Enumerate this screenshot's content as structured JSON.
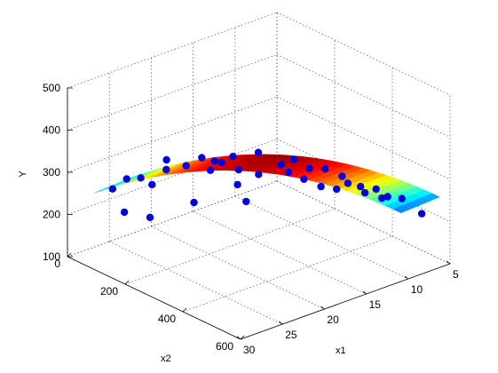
{
  "chart_data": {
    "type": "scatter",
    "subtype": "3d-scatter-with-fitted-surface",
    "title": "",
    "xlabel": "x1",
    "ylabel": "x2",
    "zlabel": "Y",
    "xlim": [
      5,
      30
    ],
    "ylim": [
      0,
      600
    ],
    "zlim": [
      100,
      500
    ],
    "x_ticks": [
      "5",
      "10",
      "15",
      "20",
      "25",
      "30"
    ],
    "y_ticks": [
      "0",
      "200",
      "400",
      "600"
    ],
    "z_ticks": [
      "100",
      "200",
      "300",
      "400",
      "500"
    ],
    "grid": true,
    "surface_colormap": "jet",
    "point_color": "#0000dd",
    "points": [
      {
        "x1": 26,
        "x2": 40,
        "y": 245
      },
      {
        "x1": 25,
        "x2": 60,
        "y": 268
      },
      {
        "x1": 24,
        "x2": 80,
        "y": 270
      },
      {
        "x1": 23,
        "x2": 90,
        "y": 250
      },
      {
        "x1": 22,
        "x2": 110,
        "y": 285
      },
      {
        "x1": 27,
        "x2": 110,
        "y": 220
      },
      {
        "x1": 23,
        "x2": 140,
        "y": 325
      },
      {
        "x1": 21,
        "x2": 150,
        "y": 300
      },
      {
        "x1": 26,
        "x2": 170,
        "y": 220
      },
      {
        "x1": 20,
        "x2": 175,
        "y": 320
      },
      {
        "x1": 19,
        "x2": 190,
        "y": 310
      },
      {
        "x1": 20,
        "x2": 205,
        "y": 300
      },
      {
        "x1": 19,
        "x2": 215,
        "y": 315
      },
      {
        "x1": 18,
        "x2": 225,
        "y": 325
      },
      {
        "x1": 23,
        "x2": 235,
        "y": 255
      },
      {
        "x1": 18,
        "x2": 245,
        "y": 300
      },
      {
        "x1": 16,
        "x2": 255,
        "y": 330
      },
      {
        "x1": 19,
        "x2": 270,
        "y": 280
      },
      {
        "x1": 17,
        "x2": 285,
        "y": 295
      },
      {
        "x1": 19,
        "x2": 300,
        "y": 250
      },
      {
        "x1": 15,
        "x2": 305,
        "y": 310
      },
      {
        "x1": 14,
        "x2": 320,
        "y": 320
      },
      {
        "x1": 15,
        "x2": 330,
        "y": 300
      },
      {
        "x1": 13,
        "x2": 345,
        "y": 300
      },
      {
        "x1": 14,
        "x2": 355,
        "y": 285
      },
      {
        "x1": 12,
        "x2": 370,
        "y": 300
      },
      {
        "x1": 13,
        "x2": 385,
        "y": 270
      },
      {
        "x1": 11,
        "x2": 400,
        "y": 285
      },
      {
        "x1": 12,
        "x2": 410,
        "y": 265
      },
      {
        "x1": 11,
        "x2": 420,
        "y": 275
      },
      {
        "x1": 10,
        "x2": 435,
        "y": 265
      },
      {
        "x1": 10,
        "x2": 450,
        "y": 255
      },
      {
        "x1": 9,
        "x2": 460,
        "y": 260
      },
      {
        "x1": 9,
        "x2": 480,
        "y": 245
      },
      {
        "x1": 9,
        "x2": 500,
        "y": 255
      },
      {
        "x1": 8,
        "x2": 520,
        "y": 250
      },
      {
        "x1": 7,
        "x2": 560,
        "y": 220
      }
    ]
  }
}
